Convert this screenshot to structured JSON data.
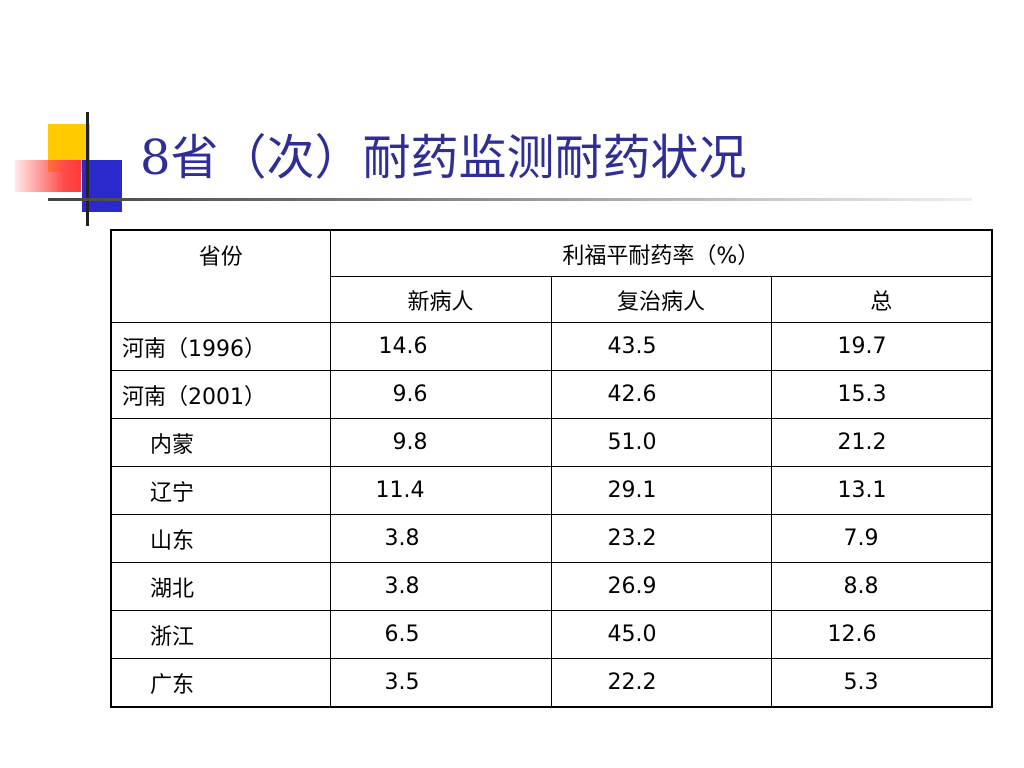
{
  "title": "8省（次）耐药监测耐药状况",
  "table": {
    "header": {
      "province": "省份",
      "rate_group": "利福平耐药率（%）",
      "columns": [
        "新病人",
        "复治病人",
        "总"
      ]
    },
    "rows": [
      {
        "province": "河南（1996）",
        "new": "14.6",
        "retreated": "43.5",
        "total": "19.7"
      },
      {
        "province": "河南（2001）",
        "new": "9.6",
        "retreated": "42.6",
        "total": "15.3"
      },
      {
        "province": "内蒙",
        "new": "9.8",
        "retreated": "51.0",
        "total": "21.2"
      },
      {
        "province": "辽宁",
        "new": "11.4",
        "retreated": "29.1",
        "total": "13.1"
      },
      {
        "province": "山东",
        "new": "3.8",
        "retreated": "23.2",
        "total": "7.9"
      },
      {
        "province": "湖北",
        "new": "3.8",
        "retreated": "26.9",
        "total": "8.8"
      },
      {
        "province": "浙江",
        "new": "6.5",
        "retreated": "45.0",
        "total": "12.6"
      },
      {
        "province": "广东",
        "new": "3.5",
        "retreated": "22.2",
        "total": "5.3"
      }
    ]
  },
  "colors": {
    "title": "#2e2e96",
    "accent_yellow": "#ffcc00",
    "accent_blue": "#2a2acc",
    "accent_red": "#ff4a4a"
  }
}
